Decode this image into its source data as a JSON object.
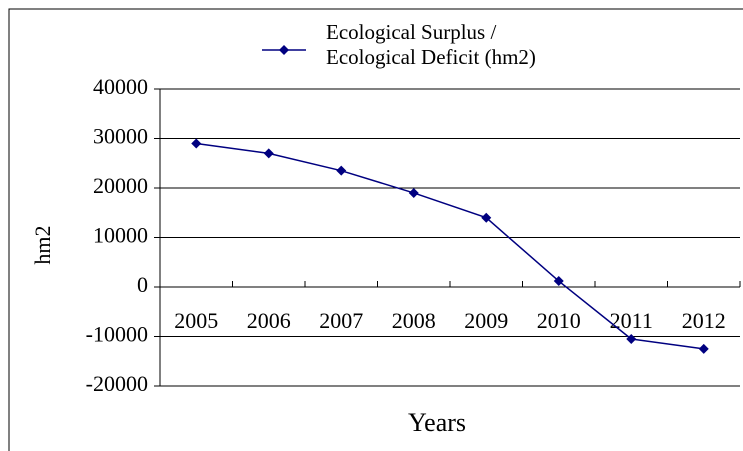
{
  "chart_data": {
    "type": "line",
    "x_label": "Years",
    "y_label": "hm2",
    "categories": [
      "2005",
      "2006",
      "2007",
      "2008",
      "2009",
      "2010",
      "2011",
      "2012"
    ],
    "series": [
      {
        "name": "Ecological Surplus / Ecological Deficit (hm2)",
        "color": "#000080",
        "values": [
          29000,
          27000,
          23500,
          19000,
          14000,
          1200,
          -10500,
          -12500
        ]
      }
    ],
    "ylim": [
      -20000,
      40000
    ],
    "yticks": [
      -20000,
      -10000,
      0,
      10000,
      20000,
      30000,
      40000
    ],
    "grid": true,
    "legend": "top"
  }
}
